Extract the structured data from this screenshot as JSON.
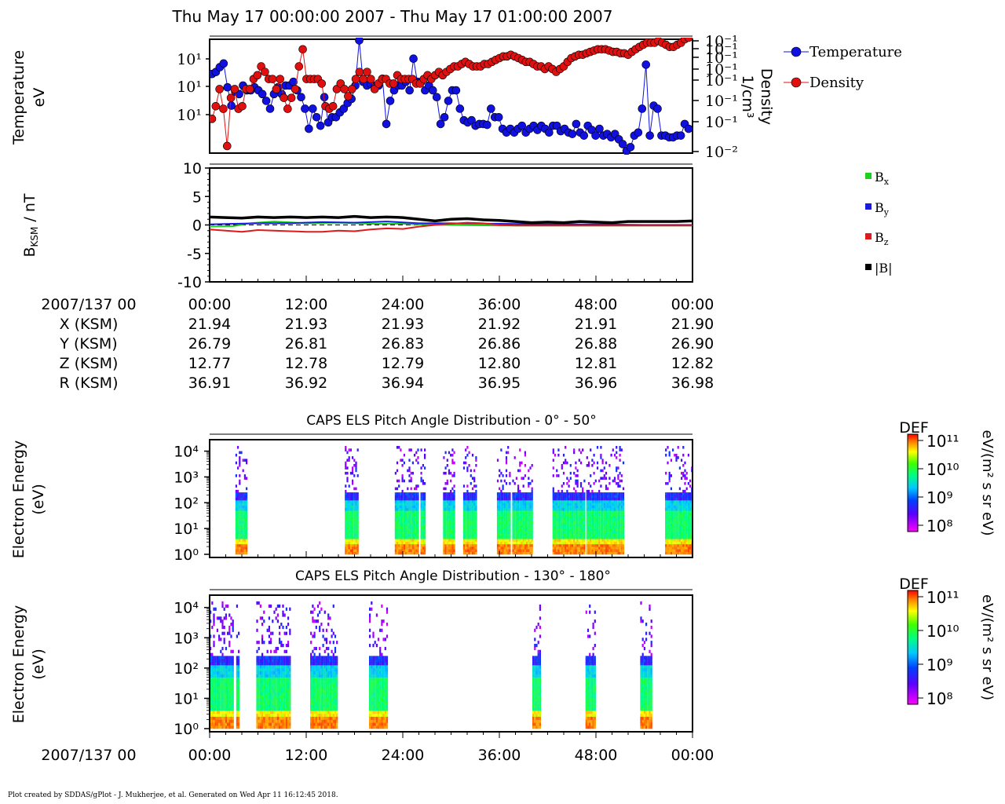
{
  "title": "Thu May 17 00:00:00 2007 - Thu May 17 01:00:00 2007",
  "footer": "Plot created by SDDAS/gPlot - J. Mukherjee, et al.  Generated on Wed Apr 11 16:12:45 2018.",
  "chart_data": [
    {
      "type": "scatter",
      "id": "plasma",
      "ylabel": "Temperature\neV",
      "ylabel_right": "Density\n1/cm³",
      "log_y": true,
      "left_ticks": [
        "10¹",
        "10¹",
        "10¹"
      ],
      "right_ticks": [
        "10⁻¹",
        "10⁻¹",
        "10⁻¹",
        "10⁻¹",
        "10⁻¹",
        "10⁻¹",
        "10⁻¹",
        "10⁻²"
      ],
      "legend": [
        "Temperature",
        "Density"
      ],
      "legend_position": "right",
      "series": [
        {
          "name": "Temperature",
          "color": "#1010e0",
          "values": [
            40,
            45,
            60,
            75,
            18,
            6,
            14,
            12,
            20,
            15,
            15,
            18,
            15,
            12,
            8,
            5,
            12,
            18,
            12,
            20,
            20,
            25,
            15,
            10,
            5,
            1.5,
            5,
            3,
            1.8,
            10,
            2.2,
            3,
            3,
            4,
            5,
            7,
            9,
            20,
            300,
            25,
            20,
            22,
            18,
            20,
            30,
            2,
            8,
            15,
            20,
            20,
            25,
            15,
            100,
            25,
            25,
            15,
            20,
            15,
            10,
            2,
            3,
            8,
            15,
            15,
            5,
            2.5,
            2.2,
            2.5,
            1.8,
            2,
            2,
            1.9,
            5,
            3,
            3,
            1.5,
            1.2,
            1.5,
            1.2,
            1.5,
            1.8,
            1.2,
            1.5,
            1.8,
            1.4,
            1.8,
            1.5,
            1.2,
            1.8,
            1.8,
            1.3,
            1.5,
            1.2,
            1.1,
            2.0,
            1.2,
            1.0,
            1.8,
            1.4,
            1.0,
            1.5,
            1.0,
            1.1,
            0.9,
            1.1,
            0.8,
            0.6,
            0.4,
            0.5,
            1.0,
            1.2,
            5,
            70,
            1.0,
            6,
            5,
            1.0,
            1.0,
            0.9,
            0.9,
            1.0,
            1.0,
            2.0,
            1.5
          ]
        },
        {
          "name": "Density",
          "color": "#e01010",
          "values": [
            0.06,
            0.1,
            0.2,
            0.09,
            0.02,
            0.14,
            0.2,
            0.09,
            0.1,
            0.2,
            0.2,
            0.3,
            0.35,
            0.5,
            0.4,
            0.3,
            0.3,
            0.2,
            0.3,
            0.14,
            0.09,
            0.14,
            0.2,
            0.5,
            1.0,
            0.3,
            0.3,
            0.3,
            0.3,
            0.25,
            0.1,
            0.09,
            0.1,
            0.2,
            0.25,
            0.2,
            0.15,
            0.2,
            0.3,
            0.4,
            0.3,
            0.4,
            0.3,
            0.2,
            0.25,
            0.3,
            0.3,
            0.25,
            0.25,
            0.35,
            0.3,
            0.3,
            0.3,
            0.3,
            0.25,
            0.25,
            0.3,
            0.35,
            0.3,
            0.35,
            0.4,
            0.35,
            0.4,
            0.45,
            0.5,
            0.5,
            0.55,
            0.6,
            0.55,
            0.5,
            0.5,
            0.5,
            0.55,
            0.55,
            0.6,
            0.65,
            0.7,
            0.75,
            0.75,
            0.8,
            0.75,
            0.7,
            0.65,
            0.6,
            0.6,
            0.55,
            0.5,
            0.5,
            0.45,
            0.5,
            0.45,
            0.4,
            0.45,
            0.5,
            0.6,
            0.7,
            0.75,
            0.8,
            0.8,
            0.85,
            0.9,
            0.95,
            1.0,
            1.0,
            1.0,
            0.95,
            0.9,
            0.9,
            0.85,
            0.85,
            0.8,
            0.9,
            1.0,
            1.1,
            1.2,
            1.3,
            1.3,
            1.3,
            1.4,
            1.3,
            1.2,
            1.1,
            1.1,
            1.2,
            1.3,
            1.5,
            1.6
          ]
        }
      ]
    },
    {
      "type": "line",
      "id": "mag",
      "ylabel": "B_KSM / nT",
      "ylim": [
        -10,
        10
      ],
      "yticks": [
        10,
        5,
        0,
        -5,
        -10
      ],
      "legend_position": "right",
      "series": [
        {
          "name": "Bx",
          "color": "#1cd01c",
          "points": [
            [
              0,
              -0.3
            ],
            [
              3,
              -0.2
            ],
            [
              5,
              0.3
            ],
            [
              8,
              0.6
            ],
            [
              12,
              0.3
            ],
            [
              16,
              0.4
            ],
            [
              20,
              0.2
            ],
            [
              24,
              0.2
            ],
            [
              26,
              0.1
            ],
            [
              30,
              0.0
            ],
            [
              36,
              -0.1
            ],
            [
              42,
              -0.1
            ],
            [
              48,
              -0.1
            ],
            [
              54,
              -0.1
            ],
            [
              60,
              -0.1
            ]
          ]
        },
        {
          "name": "By",
          "color": "#1a1ae0",
          "points": [
            [
              0,
              0.1
            ],
            [
              3,
              0.2
            ],
            [
              6,
              0.3
            ],
            [
              10,
              0.3
            ],
            [
              14,
              0.5
            ],
            [
              18,
              0.4
            ],
            [
              22,
              0.6
            ],
            [
              26,
              0.3
            ],
            [
              30,
              0.3
            ],
            [
              36,
              0.2
            ],
            [
              42,
              0.1
            ],
            [
              48,
              0.1
            ],
            [
              54,
              0.0
            ],
            [
              60,
              0.0
            ]
          ]
        },
        {
          "name": "Bz",
          "color": "#e01a1a",
          "points": [
            [
              0,
              -0.8
            ],
            [
              2,
              -1.0
            ],
            [
              4,
              -1.2
            ],
            [
              6,
              -0.9
            ],
            [
              8,
              -1.0
            ],
            [
              10,
              -1.1
            ],
            [
              12,
              -1.2
            ],
            [
              14,
              -1.2
            ],
            [
              16,
              -1.0
            ],
            [
              18,
              -1.1
            ],
            [
              20,
              -0.8
            ],
            [
              22,
              -0.6
            ],
            [
              24,
              -0.7
            ],
            [
              26,
              -0.3
            ],
            [
              28,
              0.0
            ],
            [
              30,
              0.2
            ],
            [
              32,
              0.4
            ],
            [
              34,
              0.3
            ],
            [
              36,
              0.0
            ],
            [
              38,
              -0.1
            ],
            [
              42,
              -0.1
            ],
            [
              48,
              -0.1
            ],
            [
              54,
              -0.1
            ],
            [
              60,
              -0.1
            ]
          ]
        },
        {
          "name": "|B|",
          "color": "#000000",
          "points": [
            [
              0,
              1.4
            ],
            [
              2,
              1.3
            ],
            [
              4,
              1.2
            ],
            [
              6,
              1.4
            ],
            [
              8,
              1.3
            ],
            [
              10,
              1.4
            ],
            [
              12,
              1.3
            ],
            [
              14,
              1.4
            ],
            [
              16,
              1.3
            ],
            [
              18,
              1.5
            ],
            [
              20,
              1.3
            ],
            [
              22,
              1.4
            ],
            [
              24,
              1.3
            ],
            [
              26,
              1.0
            ],
            [
              28,
              0.7
            ],
            [
              30,
              1.0
            ],
            [
              32,
              1.1
            ],
            [
              34,
              0.9
            ],
            [
              36,
              0.8
            ],
            [
              38,
              0.6
            ],
            [
              40,
              0.4
            ],
            [
              42,
              0.5
            ],
            [
              44,
              0.4
            ],
            [
              46,
              0.6
            ],
            [
              48,
              0.5
            ],
            [
              50,
              0.4
            ],
            [
              52,
              0.6
            ],
            [
              54,
              0.6
            ],
            [
              56,
              0.6
            ],
            [
              58,
              0.6
            ],
            [
              60,
              0.7
            ]
          ]
        }
      ]
    },
    {
      "type": "table",
      "id": "ephemeris",
      "header": "2007/137 00",
      "times": [
        "00:00",
        "12:00",
        "24:00",
        "36:00",
        "48:00",
        "00:00"
      ],
      "rows": [
        {
          "label": "X (KSM)",
          "values": [
            "21.94",
            "21.93",
            "21.93",
            "21.92",
            "21.91",
            "21.90"
          ]
        },
        {
          "label": "Y (KSM)",
          "values": [
            "26.79",
            "26.81",
            "26.83",
            "26.86",
            "26.88",
            "26.90"
          ]
        },
        {
          "label": "Z (KSM)",
          "values": [
            "12.77",
            "12.78",
            "12.79",
            "12.80",
            "12.81",
            "12.82"
          ]
        },
        {
          "label": "R (KSM)",
          "values": [
            "36.91",
            "36.92",
            "36.94",
            "36.95",
            "36.96",
            "36.98"
          ]
        }
      ]
    },
    {
      "type": "heatmap",
      "id": "els1",
      "title": "CAPS ELS Pitch Angle Distribution - 0° - 50°",
      "ylabel": "Electron Energy\n(eV)",
      "yticks": [
        "10⁴",
        "10³",
        "10²",
        "10¹",
        "10⁰"
      ],
      "colorbar": {
        "label": "DEF",
        "units": "eV/(m² s sr eV)",
        "ticks": [
          "10¹¹",
          "10¹⁰",
          "10⁹",
          "10⁸"
        ]
      },
      "active_intervals_min": [
        [
          3.2,
          4.5
        ],
        [
          16.8,
          18.5
        ],
        [
          23.0,
          25.8
        ],
        [
          26.2,
          26.7
        ],
        [
          29.0,
          30.3
        ],
        [
          31.5,
          33.2
        ],
        [
          35.7,
          37.3
        ],
        [
          37.6,
          40.0
        ],
        [
          42.6,
          46.5
        ],
        [
          46.8,
          51.5
        ],
        [
          56.6,
          60.0
        ]
      ]
    },
    {
      "type": "heatmap",
      "id": "els2",
      "title": "CAPS ELS Pitch Angle Distribution - 130° - 180°",
      "ylabel": "Electron Energy\n(eV)",
      "yticks": [
        "10⁴",
        "10³",
        "10²",
        "10¹",
        "10⁰"
      ],
      "colorbar": {
        "label": "DEF",
        "units": "eV/(m² s sr eV)",
        "ticks": [
          "10¹¹",
          "10¹⁰",
          "10⁹",
          "10⁸"
        ]
      },
      "active_intervals_min": [
        [
          0.0,
          2.8
        ],
        [
          3.3,
          3.6
        ],
        [
          5.8,
          10.0
        ],
        [
          12.5,
          15.8
        ],
        [
          19.8,
          22.0
        ],
        [
          40.1,
          41.0
        ],
        [
          46.7,
          47.8
        ],
        [
          53.5,
          55.0
        ]
      ]
    },
    {
      "type": "table",
      "id": "timeaxis",
      "header": "2007/137 00",
      "times": [
        "00:00",
        "12:00",
        "24:00",
        "36:00",
        "48:00",
        "00:00"
      ]
    }
  ]
}
